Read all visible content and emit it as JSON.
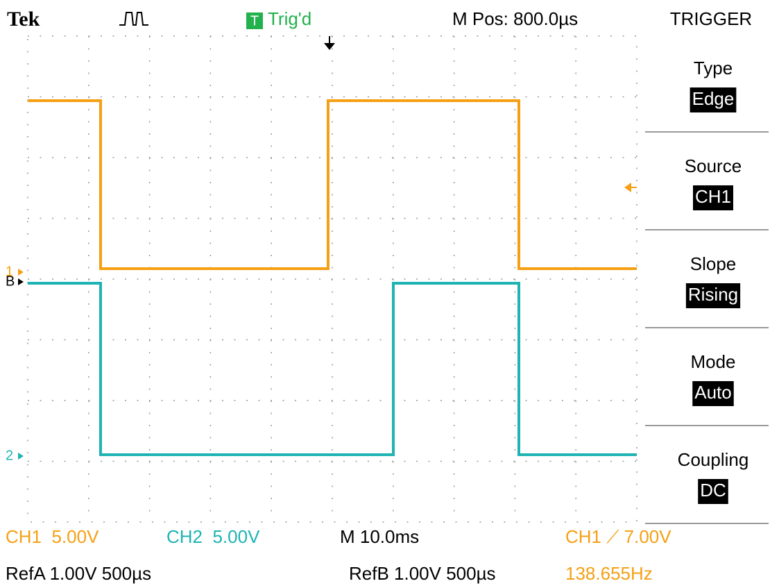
{
  "header": {
    "brand": "Tek",
    "trigger_badge": "T",
    "trigger_status": "Trig'd",
    "position": "M Pos: 800.0µs"
  },
  "menu": {
    "title": "TRIGGER",
    "items": [
      {
        "label": "Type",
        "value": "Edge"
      },
      {
        "label": "Source",
        "value": "CH1"
      },
      {
        "label": "Slope",
        "value": "Rising"
      },
      {
        "label": "Mode",
        "value": "Auto"
      },
      {
        "label": "Coupling",
        "value": "DC"
      }
    ]
  },
  "markers": {
    "ch1": "1",
    "ch2": "2",
    "ref": "B"
  },
  "status": {
    "ch1_scale": "CH1  5.00V",
    "ch2_scale": "CH2  5.00V",
    "timebase": "M 10.0ms",
    "trigger_level": "CH1 ⟋ 7.00V",
    "refa": "RefA 1.00V 500µs",
    "refb": "RefB 1.00V 500µs",
    "frequency": "138.655Hz"
  }
}
